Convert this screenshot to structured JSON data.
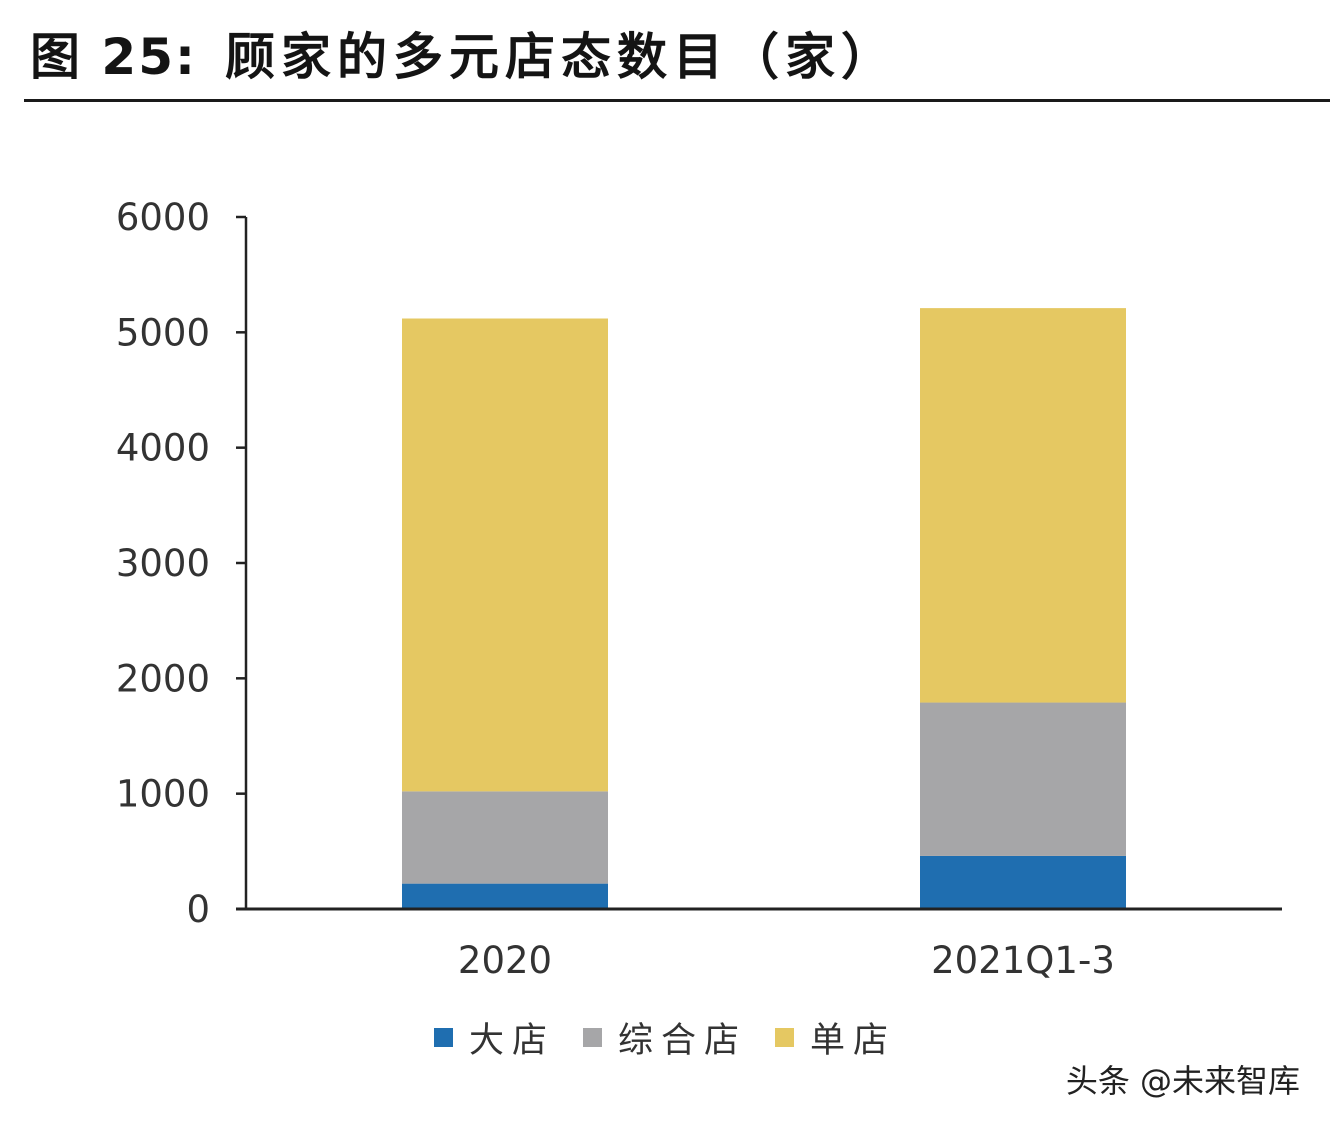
{
  "header": {
    "figure_number": "图 25:",
    "title": "顾家的多元店态数目（家）"
  },
  "chart_data": {
    "type": "bar",
    "stacked": true,
    "title": "顾家的多元店态数目（家）",
    "categories": [
      "2020",
      "2021Q1-3"
    ],
    "series": [
      {
        "name": "大店",
        "color": "#1f6eb0",
        "values": [
          220,
          460
        ]
      },
      {
        "name": "综合店",
        "color": "#a6a6a8",
        "values": [
          800,
          1330
        ]
      },
      {
        "name": "单店",
        "color": "#e5c862",
        "values": [
          4100,
          3420
        ]
      }
    ],
    "ylim": [
      0,
      6000
    ],
    "yticks": [
      0,
      1000,
      2000,
      3000,
      4000,
      5000,
      6000
    ],
    "grid": false,
    "legend_position": "bottom"
  },
  "watermark": "头条 @未来智库"
}
